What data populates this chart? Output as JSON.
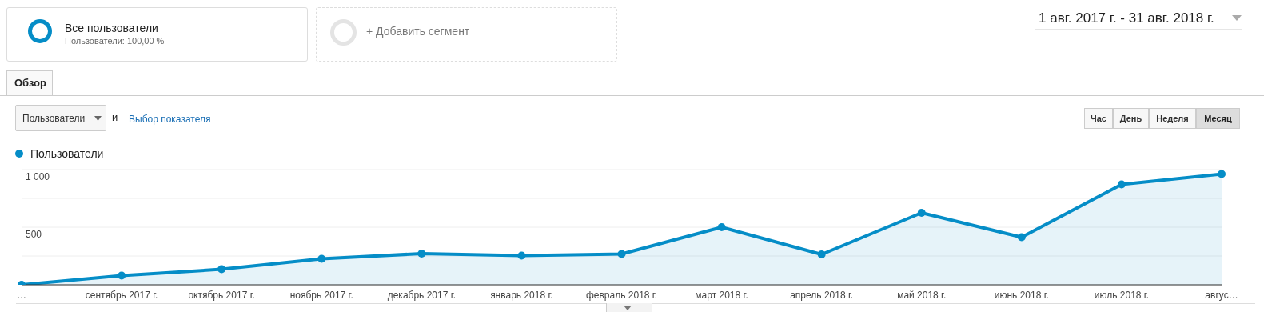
{
  "chart_data": {
    "type": "area",
    "categories": [
      "…",
      "сентябрь 2017 г.",
      "октябрь 2017 г.",
      "ноябрь 2017 г.",
      "декабрь 2017 г.",
      "январь 2018 г.",
      "февраль 2018 г.",
      "март 2018 г.",
      "апрель 2018 г.",
      "май 2018 г.",
      "июнь 2018 г.",
      "июль 2018 г.",
      "авгус…"
    ],
    "series": [
      {
        "name": "Пользователи",
        "color": "#058dc7",
        "values": [
          0,
          80,
          135,
          226,
          271,
          253,
          267,
          500,
          264,
          625,
          413,
          872,
          962
        ]
      }
    ],
    "ylim": [
      0,
      1000
    ],
    "yticks": [
      {
        "value": 0,
        "label": null
      },
      {
        "value": 250,
        "label": null
      },
      {
        "value": 500,
        "label": "500"
      },
      {
        "value": 750,
        "label": null
      },
      {
        "value": 1000,
        "label": "1 000"
      }
    ],
    "grid": "y",
    "legend": "top left",
    "marker": "circle",
    "line_style": "solid",
    "annotations": [
      "Все пользователи",
      "Пользователи: 100,00 %",
      "+ Добавить сегмент",
      "1 авг. 2017 г. - 31 авг. 2018 г.",
      "Обзор",
      "Пользователи",
      "и",
      "Выбор показателя",
      "Час",
      "День",
      "Неделя",
      "Месяц"
    ]
  }
}
